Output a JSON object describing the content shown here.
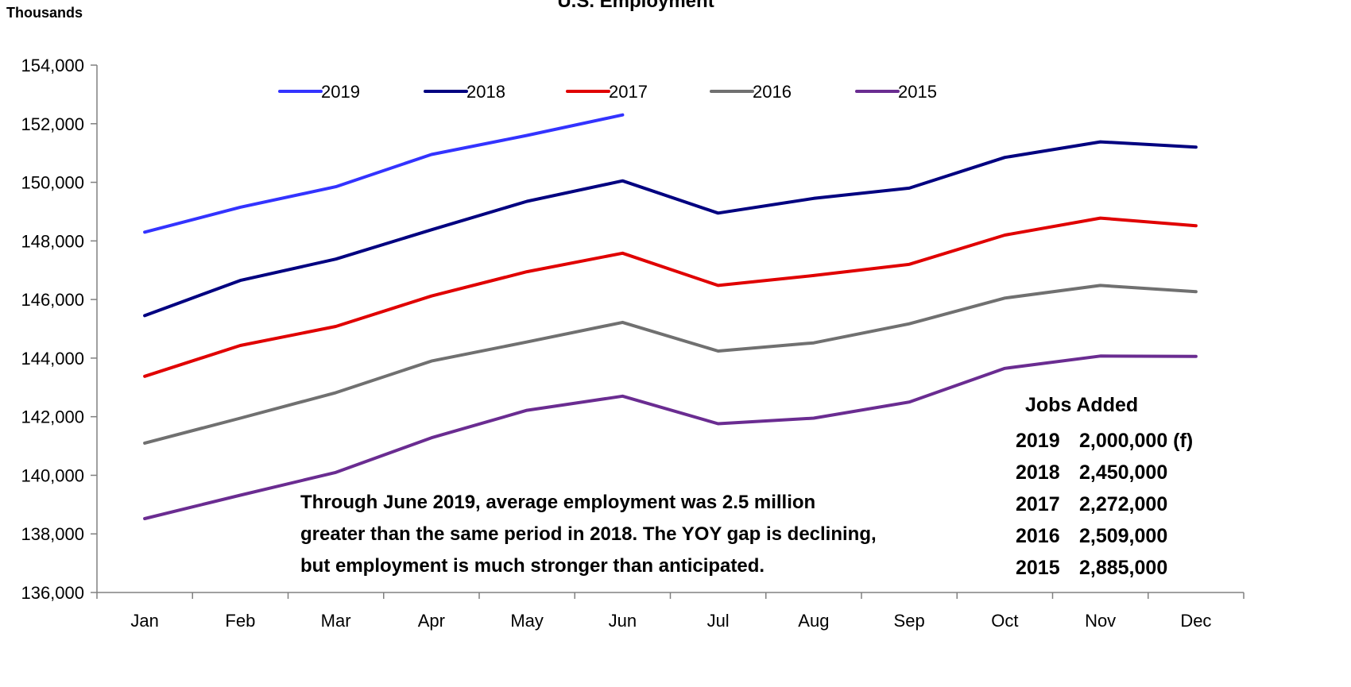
{
  "chart_data": {
    "type": "line",
    "title": "U.S. Employment",
    "ylabel": "Thousands",
    "xlabel": "",
    "ylim": [
      136000,
      154000
    ],
    "yticks": [
      136000,
      138000,
      140000,
      142000,
      144000,
      146000,
      148000,
      150000,
      152000,
      154000
    ],
    "ytick_labels": [
      "136,000",
      "138,000",
      "140,000",
      "142,000",
      "144,000",
      "146,000",
      "148,000",
      "150,000",
      "152,000",
      "154,000"
    ],
    "categories": [
      "Jan",
      "Feb",
      "Mar",
      "Apr",
      "May",
      "Jun",
      "Jul",
      "Aug",
      "Sep",
      "Oct",
      "Nov",
      "Dec"
    ],
    "grid": false,
    "legend_position": "top",
    "series": [
      {
        "name": "2019",
        "color": "#3333ff",
        "values": [
          148300,
          149150,
          149850,
          150950,
          151600,
          152300,
          null,
          null,
          null,
          null,
          null,
          null
        ]
      },
      {
        "name": "2018",
        "color": "#000080",
        "values": [
          145450,
          146650,
          147380,
          148380,
          149350,
          150050,
          148950,
          149450,
          149800,
          150850,
          151380,
          151200
        ]
      },
      {
        "name": "2017",
        "color": "#e00000",
        "values": [
          143380,
          144430,
          145080,
          146120,
          146950,
          147580,
          146480,
          146820,
          147200,
          148200,
          148780,
          148520
        ]
      },
      {
        "name": "2016",
        "color": "#707070",
        "values": [
          141100,
          141950,
          142820,
          143900,
          144550,
          145220,
          144240,
          144520,
          145170,
          146050,
          146480,
          146270
        ]
      },
      {
        "name": "2015",
        "color": "#6a2c91",
        "values": [
          138520,
          139320,
          140100,
          141280,
          142220,
          142700,
          141760,
          141950,
          142500,
          143650,
          144070,
          144060
        ]
      }
    ],
    "annotation": {
      "lines": [
        "Through June 2019, average employment was 2.5 million",
        "greater than the same period in 2018. The YOY gap is declining,",
        "but employment is much stronger than anticipated."
      ]
    },
    "jobs_added": {
      "heading": "Jobs Added",
      "rows": [
        {
          "year": "2019",
          "value": "2,000,000 (f)"
        },
        {
          "year": "2018",
          "value": "2,450,000"
        },
        {
          "year": "2017",
          "value": "2,272,000"
        },
        {
          "year": "2016",
          "value": "2,509,000"
        },
        {
          "year": "2015",
          "value": "2,885,000"
        }
      ]
    }
  }
}
